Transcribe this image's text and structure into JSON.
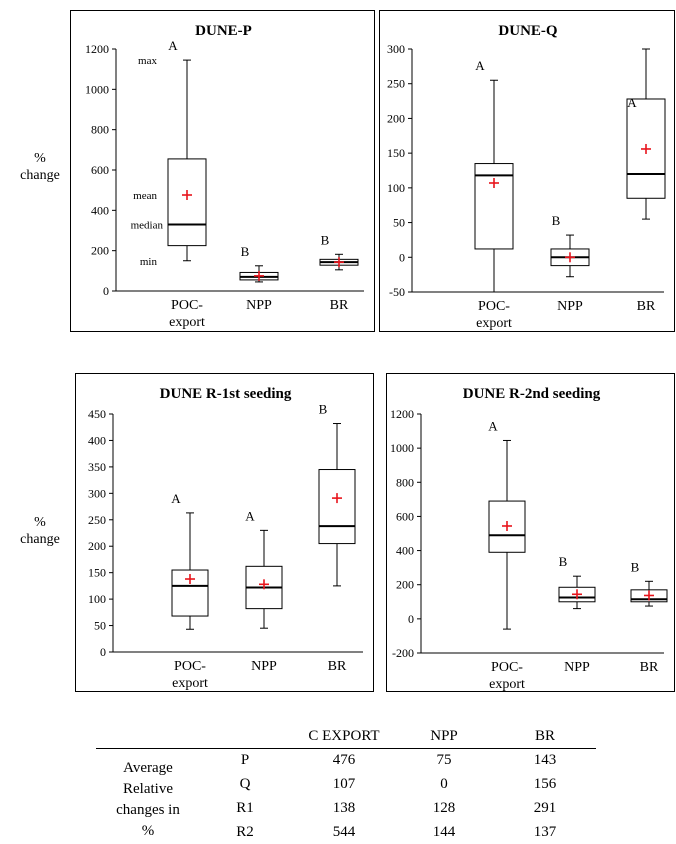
{
  "y_axis_label_lines": [
    "%",
    "change"
  ],
  "chart_data": [
    {
      "type": "box",
      "title": "DUNE-P",
      "ylim": [
        0,
        1200
      ],
      "yticks": [
        0,
        200,
        400,
        600,
        800,
        1000,
        1200
      ],
      "categories": [
        [
          "POC-",
          "export"
        ],
        [
          "NPP"
        ],
        [
          "BR"
        ]
      ],
      "boxes": [
        {
          "category": "POC-export",
          "min": 150,
          "q1": 225,
          "median": 330,
          "q3": 655,
          "max": 1145,
          "mean": 476,
          "group": "A"
        },
        {
          "category": "NPP",
          "min": 45,
          "q1": 55,
          "median": 70,
          "q3": 92,
          "max": 125,
          "mean": 75,
          "group": "B"
        },
        {
          "category": "BR",
          "min": 105,
          "q1": 128,
          "median": 143,
          "q3": 157,
          "max": 182,
          "mean": 143,
          "group": "B"
        }
      ],
      "annotations": [
        "max",
        "mean",
        "median",
        "min"
      ]
    },
    {
      "type": "box",
      "title": "DUNE-Q",
      "ylim": [
        -50,
        300
      ],
      "yticks": [
        -50,
        0,
        50,
        100,
        150,
        200,
        250,
        300
      ],
      "categories": [
        [
          "POC-",
          "export"
        ],
        [
          "NPP"
        ],
        [
          "BR"
        ]
      ],
      "boxes": [
        {
          "category": "POC-export",
          "min": -50,
          "q1": 12,
          "median": 118,
          "q3": 135,
          "max": 255,
          "mean": 107,
          "group": "A"
        },
        {
          "category": "NPP",
          "min": -28,
          "q1": -12,
          "median": 0,
          "q3": 12,
          "max": 32,
          "mean": 0,
          "group": "B"
        },
        {
          "category": "BR",
          "min": 55,
          "q1": 85,
          "median": 120,
          "q3": 228,
          "max": 300,
          "mean": 156,
          "group": "A"
        }
      ]
    },
    {
      "type": "box",
      "title": "DUNE R-1st seeding",
      "ylim": [
        0,
        450
      ],
      "yticks": [
        0,
        50,
        100,
        150,
        200,
        250,
        300,
        350,
        400,
        450
      ],
      "categories": [
        [
          "POC-",
          "export"
        ],
        [
          "NPP"
        ],
        [
          "BR"
        ]
      ],
      "boxes": [
        {
          "category": "POC-export",
          "min": 43,
          "q1": 68,
          "median": 125,
          "q3": 155,
          "max": 263,
          "mean": 138,
          "group": "A"
        },
        {
          "category": "NPP",
          "min": 45,
          "q1": 82,
          "median": 122,
          "q3": 162,
          "max": 230,
          "mean": 128,
          "group": "A"
        },
        {
          "category": "BR",
          "min": 125,
          "q1": 205,
          "median": 238,
          "q3": 345,
          "max": 432,
          "mean": 291,
          "group": "B"
        }
      ]
    },
    {
      "type": "box",
      "title": "DUNE R-2nd seeding",
      "ylim": [
        -200,
        1200
      ],
      "yticks": [
        -200,
        0,
        200,
        400,
        600,
        800,
        1000,
        1200
      ],
      "categories": [
        [
          "POC-",
          "export"
        ],
        [
          "NPP"
        ],
        [
          "BR"
        ]
      ],
      "boxes": [
        {
          "category": "POC-export",
          "min": -60,
          "q1": 390,
          "median": 490,
          "q3": 690,
          "max": 1045,
          "mean": 544,
          "group": "A"
        },
        {
          "category": "NPP",
          "min": 60,
          "q1": 100,
          "median": 125,
          "q3": 185,
          "max": 250,
          "mean": 144,
          "group": "B"
        },
        {
          "category": "BR",
          "min": 75,
          "q1": 100,
          "median": 115,
          "q3": 170,
          "max": 220,
          "mean": 137,
          "group": "B"
        }
      ]
    }
  ],
  "table": {
    "columns": [
      "C EXPORT",
      "NPP",
      "BR"
    ],
    "row_header_lines": [
      "Average",
      "Relative",
      "changes in",
      "%"
    ],
    "rows": [
      {
        "label": "P",
        "values": [
          "476",
          "75",
          "143"
        ]
      },
      {
        "label": "Q",
        "values": [
          "107",
          "0",
          "156"
        ]
      },
      {
        "label": "R1",
        "values": [
          "138",
          "128",
          "291"
        ]
      },
      {
        "label": "R2",
        "values": [
          "544",
          "144",
          "137"
        ]
      }
    ]
  }
}
